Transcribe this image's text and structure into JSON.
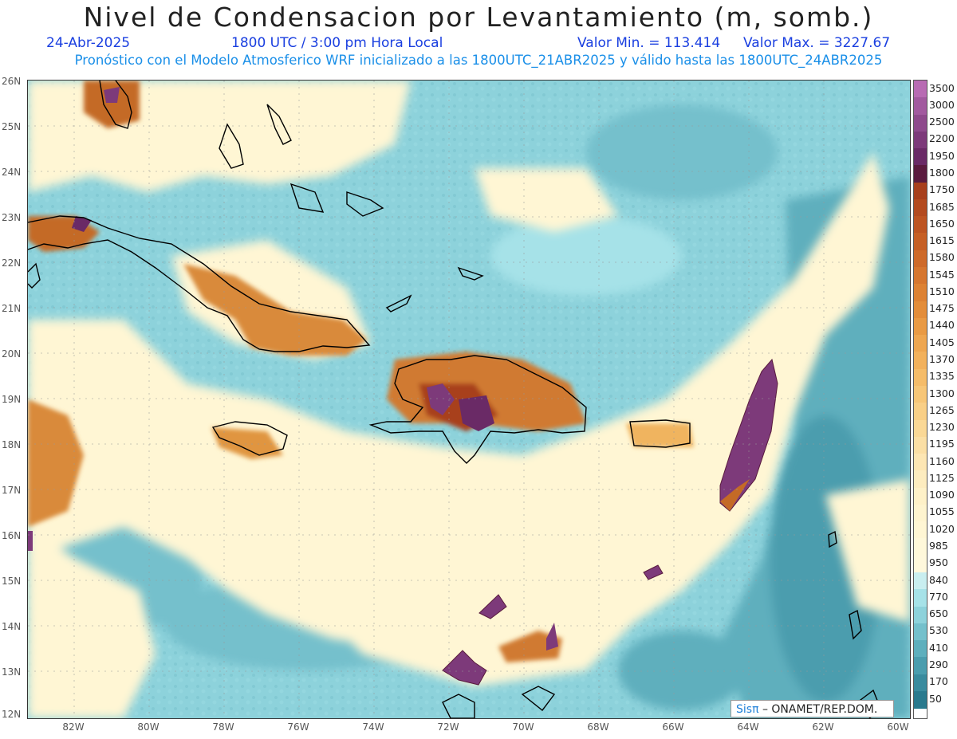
{
  "header": {
    "title": "Nivel de Condensacion por Levantamiento (m, somb.)",
    "date": "24-Abr-2025",
    "time": "1800 UTC / 3:00 pm Hora Local",
    "min_label": "Valor Min. = 113.414",
    "max_label": "Valor Max. = 3227.67",
    "subtitle": "Pronóstico con el Modelo Atmosferico WRF inicializado a las 1800UTC_21ABR2025 y válido hasta las  1800UTC_24ABR2025"
  },
  "axes": {
    "lat_labels": [
      "26N",
      "25N",
      "24N",
      "23N",
      "22N",
      "21N",
      "20N",
      "19N",
      "18N",
      "17N",
      "16N",
      "15N",
      "14N",
      "13N",
      "12N"
    ],
    "lon_labels": [
      "82W",
      "80W",
      "78W",
      "76W",
      "74W",
      "72W",
      "70W",
      "68W",
      "66W",
      "64W",
      "62W",
      "60W"
    ]
  },
  "colorbar": {
    "labels": [
      "3500",
      "3000",
      "2500",
      "2200",
      "1950",
      "1800",
      "1750",
      "1685",
      "1650",
      "1615",
      "1580",
      "1545",
      "1510",
      "1475",
      "1440",
      "1405",
      "1370",
      "1335",
      "1300",
      "1265",
      "1230",
      "1195",
      "1160",
      "1125",
      "1090",
      "1055",
      "1020",
      "985",
      "950",
      "840",
      "770",
      "650",
      "530",
      "410",
      "290",
      "170",
      "50"
    ],
    "colors": [
      "#b86bb3",
      "#a25a9f",
      "#8e4a8c",
      "#7d3a7a",
      "#6a2a66",
      "#5a1b3e",
      "#a8401d",
      "#b34a1f",
      "#bd5422",
      "#c65f25",
      "#ce6a2a",
      "#d6762f",
      "#dd8234",
      "#e38d3a",
      "#e99a44",
      "#eea650",
      "#f2b15c",
      "#f5bc69",
      "#f7c677",
      "#f9cf86",
      "#fad896",
      "#fbdfa5",
      "#fde6b3",
      "#fdecbf",
      "#fef1c8",
      "#fef4cf",
      "#fff6d4",
      "#fff8da",
      "#fff8dc",
      "#c9eef0",
      "#a6e2e8",
      "#8dd2db",
      "#74c0cc",
      "#5eafbd",
      "#4b9dae",
      "#3a8b9e",
      "#2a7a8e"
    ]
  },
  "credit": {
    "brand": "Sisπ",
    "text": " – ONAMET/REP.DOM."
  }
}
